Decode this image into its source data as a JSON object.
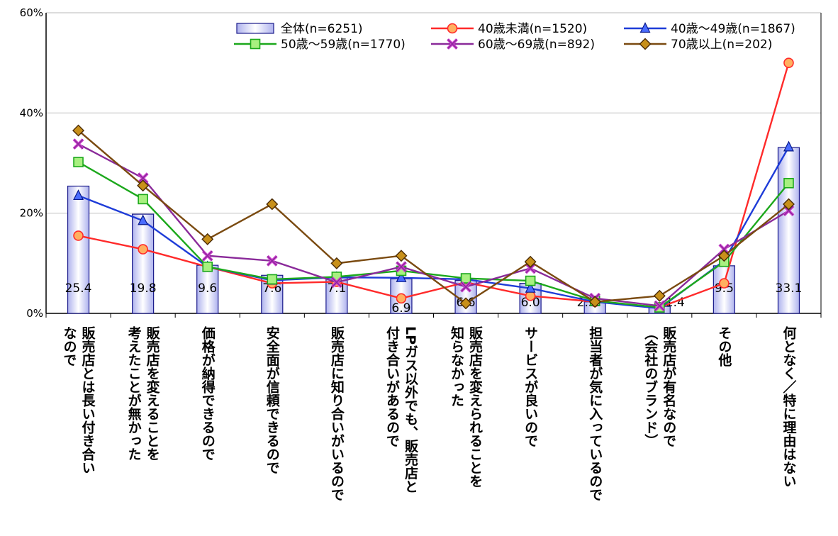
{
  "chart_data": {
    "type": "bar",
    "ylim": [
      0,
      60
    ],
    "y_ticks": [
      "0%",
      "20%",
      "40%",
      "60%"
    ],
    "grid": true,
    "legend_position": "top-right",
    "categories": [
      [
        "販売店とは長い付き合い",
        "なので"
      ],
      [
        "販売店を変えることを",
        "考えたことが無かった"
      ],
      [
        "価格が納得できるので"
      ],
      [
        "安全面が信頼できるので"
      ],
      [
        "販売店に知り合いがいるので"
      ],
      [
        "LPガス以外でも、販売店と",
        "付き合いがあるので"
      ],
      [
        "販売店を変えられることを",
        "知らなかった"
      ],
      [
        "サービスが良いので"
      ],
      [
        "担当者が気に入っているので"
      ],
      [
        "販売店が有名なので",
        "（会社のブランド）"
      ],
      [
        "その他"
      ],
      [
        "何となく／特に理由はない"
      ]
    ],
    "bar_series": {
      "name": "全体(n=6251)",
      "values": [
        25.4,
        19.8,
        9.6,
        7.6,
        7.1,
        6.9,
        6.6,
        6.0,
        2.3,
        1.4,
        9.5,
        33.1
      ],
      "labels": [
        "25.4",
        "19.8",
        "9.6",
        "7.6",
        "7.1",
        "6.9",
        "6.6",
        "6.0",
        "2.3",
        "1.4",
        "9.5",
        "33.1"
      ]
    },
    "line_series": [
      {
        "name": "40歳未満(n=1520)",
        "color": "#ff2a2a",
        "marker": "circle",
        "values": [
          15.5,
          12.8,
          9.3,
          6.0,
          6.3,
          3.0,
          6.2,
          3.5,
          2.3,
          1.2,
          6.0,
          50.0
        ]
      },
      {
        "name": "40歳～49歳(n=1867)",
        "color": "#1e3cd8",
        "marker": "triangle",
        "values": [
          23.5,
          18.5,
          9.3,
          6.6,
          7.2,
          7.1,
          6.8,
          5.0,
          2.3,
          1.0,
          10.5,
          33.2
        ]
      },
      {
        "name": "50歳～59歳(n=1770)",
        "color": "#1ca81c",
        "marker": "square",
        "values": [
          30.2,
          22.8,
          9.3,
          6.8,
          7.3,
          8.5,
          7.0,
          6.5,
          2.5,
          1.2,
          10.3,
          26.0
        ]
      },
      {
        "name": "60歳～69歳(n=892)",
        "color": "#8a2a9a",
        "marker": "x",
        "values": [
          33.8,
          27.0,
          11.5,
          10.5,
          6.2,
          9.3,
          5.3,
          9.0,
          3.0,
          1.5,
          12.8,
          20.5
        ]
      },
      {
        "name": "70歳以上(n=202)",
        "color": "#7a4a10",
        "marker": "diamond",
        "values": [
          36.5,
          25.5,
          14.8,
          21.8,
          10.0,
          11.5,
          2.0,
          10.3,
          2.3,
          3.5,
          11.5,
          21.8
        ]
      }
    ]
  }
}
